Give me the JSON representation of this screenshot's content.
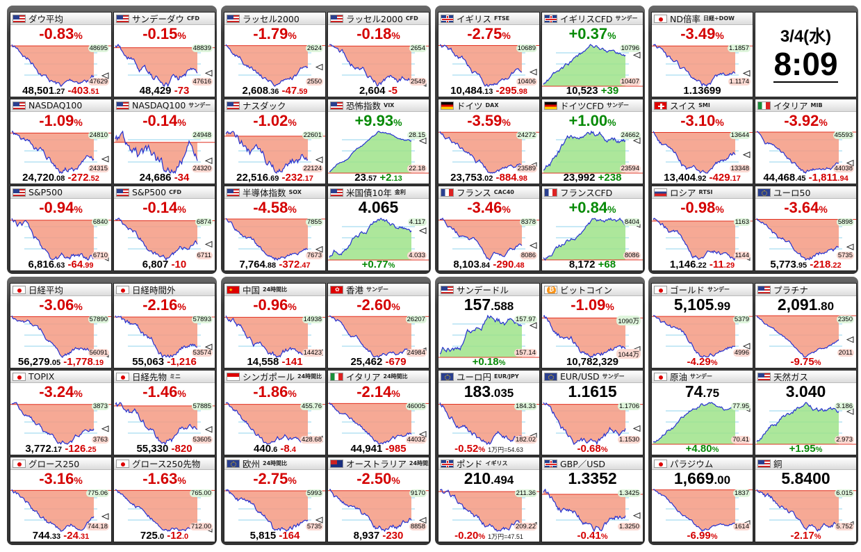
{
  "clock": {
    "date": "3/4(水)",
    "time": "8:09"
  },
  "groups": [
    {
      "cards": [
        {
          "flag": "us",
          "name": "ダウ平均",
          "tag": "",
          "head": [
            "-0.83",
            "%"
          ],
          "hi": "48695",
          "lo": "47629",
          "bottom": {
            "price": [
              "48,501",
              ".27"
            ],
            "change": [
              "-403",
              ".51"
            ]
          }
        },
        {
          "flag": "us",
          "name": "サンデーダウ",
          "tag": "CFD",
          "head": [
            "-0.15",
            "%"
          ],
          "hi": "48839",
          "lo": "47616",
          "bottom": {
            "price": [
              "48,429",
              ""
            ],
            "change": [
              "-73",
              ""
            ]
          }
        },
        {
          "flag": "us",
          "name": "NASDAQ100",
          "tag": "",
          "head": [
            "-1.09",
            "%"
          ],
          "hi": "24810",
          "lo": "24315",
          "bottom": {
            "price": [
              "24,720",
              ".08"
            ],
            "change": [
              "-272",
              ".52"
            ]
          }
        },
        {
          "flag": "us",
          "name": "NASDAQ100",
          "tag": "サンデー",
          "head": [
            "-0.14",
            "%"
          ],
          "hi": "24948",
          "lo": "24320",
          "bottom": {
            "price": [
              "24,686",
              ""
            ],
            "change": [
              "-34",
              ""
            ]
          }
        },
        {
          "flag": "us",
          "name": "S&P500",
          "tag": "",
          "head": [
            "-0.94",
            "%"
          ],
          "hi": "6840",
          "lo": "6710",
          "bottom": {
            "price": [
              "6,816",
              ".63"
            ],
            "change": [
              "-64",
              ".99"
            ]
          }
        },
        {
          "flag": "us",
          "name": "S&P500",
          "tag": "CFD",
          "head": [
            "-0.14",
            "%"
          ],
          "hi": "6874",
          "lo": "6711",
          "bottom": {
            "price": [
              "6,807",
              ""
            ],
            "change": [
              "-10",
              ""
            ]
          }
        }
      ]
    },
    {
      "cards": [
        {
          "flag": "us",
          "name": "ラッセル2000",
          "tag": "",
          "head": [
            "-1.79",
            "%"
          ],
          "hi": "2624",
          "lo": "2550",
          "bottom": {
            "price": [
              "2,608",
              ".36"
            ],
            "change": [
              "-47",
              ".59"
            ]
          }
        },
        {
          "flag": "us",
          "name": "ラッセル2000",
          "tag": "CFD",
          "head": [
            "-0.18",
            "%"
          ],
          "hi": "2654",
          "lo": "2549",
          "bottom": {
            "price": [
              "2,604",
              ""
            ],
            "change": [
              "-5",
              ""
            ]
          }
        },
        {
          "flag": "us",
          "name": "ナスダック",
          "tag": "",
          "head": [
            "-1.02",
            "%"
          ],
          "hi": "22601",
          "lo": "22124",
          "bottom": {
            "price": [
              "22,516",
              ".69"
            ],
            "change": [
              "-232",
              ".17"
            ]
          }
        },
        {
          "flag": "us",
          "name": "恐怖指数",
          "tag": "VIX",
          "head": [
            "+9.93",
            "%"
          ],
          "hi": "28.15",
          "lo": "22.18",
          "bottom": {
            "price": [
              "23",
              ".57"
            ],
            "change": [
              "+2",
              ".13"
            ]
          }
        },
        {
          "flag": "us",
          "name": "半導体指数",
          "tag": "SOX",
          "head": [
            "-4.58",
            "%"
          ],
          "hi": "7855",
          "lo": "7673",
          "bottom": {
            "price": [
              "7,764",
              ".88"
            ],
            "change": [
              "-372",
              ".47"
            ]
          }
        },
        {
          "flag": "us",
          "name": "米国債10年",
          "tag": "金利",
          "head": [
            "4.065",
            ""
          ],
          "hi": "4.117",
          "lo": "4.033",
          "bottom": {
            "pct": [
              "+0.77",
              "%"
            ]
          }
        }
      ]
    },
    {
      "cards": [
        {
          "flag": "uk",
          "name": "イギリス",
          "tag": "FTSE",
          "head": [
            "-2.75",
            "%"
          ],
          "hi": "10689",
          "lo": "10406",
          "bottom": {
            "price": [
              "10,484",
              ".13"
            ],
            "change": [
              "-295",
              ".98"
            ]
          }
        },
        {
          "flag": "uk",
          "name": "イギリスCFD",
          "tag": "サンデー",
          "head": [
            "+0.37",
            "%"
          ],
          "hi": "10796",
          "lo": "10407",
          "bottom": {
            "price": [
              "10,523",
              ""
            ],
            "change": [
              "+39",
              ""
            ]
          }
        },
        {
          "flag": "de",
          "name": "ドイツ",
          "tag": "DAX",
          "head": [
            "-3.59",
            "%"
          ],
          "hi": "24272",
          "lo": "23589",
          "bottom": {
            "price": [
              "23,753",
              ".02"
            ],
            "change": [
              "-884",
              ".98"
            ]
          }
        },
        {
          "flag": "de",
          "name": "ドイツCFD",
          "tag": "サンデー",
          "head": [
            "+1.00",
            "%"
          ],
          "hi": "24662",
          "lo": "23594",
          "bottom": {
            "price": [
              "23,992",
              ""
            ],
            "change": [
              "+238",
              ""
            ]
          }
        },
        {
          "flag": "fr",
          "name": "フランス",
          "tag": "CAC40",
          "head": [
            "-3.46",
            "%"
          ],
          "hi": "8378",
          "lo": "8086",
          "bottom": {
            "price": [
              "8,103",
              ".84"
            ],
            "change": [
              "-290",
              ".48"
            ]
          }
        },
        {
          "flag": "fr",
          "name": "フランスCFD",
          "tag": "",
          "head": [
            "+0.84",
            "%"
          ],
          "hi": "8404",
          "lo": "8086",
          "bottom": {
            "price": [
              "8,172",
              ""
            ],
            "change": [
              "+68",
              ""
            ]
          }
        }
      ]
    },
    {
      "cards": [
        {
          "flag": "jp",
          "name": "ND倍率",
          "tag": "日経÷DOW",
          "head": [
            "-3.49",
            "%"
          ],
          "hi": "1.1857",
          "lo": "1.1174",
          "bottom": {
            "price": [
              "1.13699",
              ""
            ],
            "change": [
              "",
              ""
            ]
          }
        },
        null,
        {
          "flag": "ch",
          "name": "スイス",
          "tag": "SMI",
          "head": [
            "-3.10",
            "%"
          ],
          "hi": "13644",
          "lo": "13348",
          "bottom": {
            "price": [
              "13,404",
              ".92"
            ],
            "change": [
              "-429",
              ".17"
            ]
          }
        },
        {
          "flag": "it",
          "name": "イタリア",
          "tag": "MIB",
          "head": [
            "-3.92",
            "%"
          ],
          "hi": "45593",
          "lo": "44038",
          "bottom": {
            "price": [
              "44,468",
              ".45"
            ],
            "change": [
              "-1,811",
              ".94"
            ]
          }
        },
        {
          "flag": "ru",
          "name": "ロシア",
          "tag": "RTSI",
          "head": [
            "-0.98",
            "%"
          ],
          "hi": "1163",
          "lo": "1144",
          "bottom": {
            "price": [
              "1,146",
              ".22"
            ],
            "change": [
              "-11",
              ".29"
            ]
          }
        },
        {
          "flag": "eu",
          "name": "ユーロ50",
          "tag": "",
          "head": [
            "-3.64",
            "%"
          ],
          "hi": "5898",
          "lo": "5735",
          "bottom": {
            "price": [
              "5,773",
              ".95"
            ],
            "change": [
              "-218",
              ".22"
            ]
          }
        }
      ]
    },
    {
      "cards": [
        {
          "flag": "jp",
          "name": "日経平均",
          "tag": "",
          "head": [
            "-3.06",
            "%"
          ],
          "hi": "57890",
          "lo": "56091",
          "bottom": {
            "price": [
              "56,279",
              ".05"
            ],
            "change": [
              "-1,778",
              ".19"
            ]
          }
        },
        {
          "flag": "jp",
          "name": "日経時間外",
          "tag": "",
          "head": [
            "-2.16",
            "%"
          ],
          "hi": "57893",
          "lo": "53574",
          "bottom": {
            "price": [
              "55,063",
              ""
            ],
            "change": [
              "-1,216",
              ""
            ]
          }
        },
        {
          "flag": "jp",
          "name": "TOPIX",
          "tag": "",
          "head": [
            "-3.24",
            "%"
          ],
          "hi": "3873",
          "lo": "3763",
          "bottom": {
            "price": [
              "3,772",
              ".17"
            ],
            "change": [
              "-126",
              ".25"
            ]
          }
        },
        {
          "flag": "jp",
          "name": "日経先物",
          "tag": "ミニ",
          "head": [
            "-1.46",
            "%"
          ],
          "hi": "57885",
          "lo": "53605",
          "bottom": {
            "price": [
              "55,330",
              ""
            ],
            "change": [
              "-820",
              ""
            ]
          }
        },
        {
          "flag": "jp",
          "name": "グロース250",
          "tag": "",
          "head": [
            "-3.16",
            "%"
          ],
          "hi": "775.06",
          "lo": "744.18",
          "bottom": {
            "price": [
              "744",
              ".33"
            ],
            "change": [
              "-24",
              ".31"
            ]
          }
        },
        {
          "flag": "jp",
          "name": "グロース250先物",
          "tag": "",
          "head": [
            "-1.63",
            "%"
          ],
          "hi": "765.00",
          "lo": "712.00",
          "bottom": {
            "price": [
              "725",
              ".0"
            ],
            "change": [
              "-12",
              ".0"
            ]
          }
        }
      ]
    },
    {
      "cards": [
        {
          "flag": "cn",
          "name": "中国",
          "tag": "24時間比",
          "head": [
            "-0.96",
            "%"
          ],
          "hi": "14938",
          "lo": "14423",
          "bottom": {
            "price": [
              "14,558",
              ""
            ],
            "change": [
              "-141",
              ""
            ]
          }
        },
        {
          "flag": "hk",
          "name": "香港",
          "tag": "サンデー",
          "head": [
            "-2.60",
            "%"
          ],
          "hi": "26207",
          "lo": "24984",
          "bottom": {
            "price": [
              "25,462",
              ""
            ],
            "change": [
              "-679",
              ""
            ]
          }
        },
        {
          "flag": "sg",
          "name": "シンガポール",
          "tag": "24時間比",
          "head": [
            "-1.86",
            "%"
          ],
          "hi": "455.76",
          "lo": "428.68",
          "bottom": {
            "price": [
              "440",
              ".6"
            ],
            "change": [
              "-8",
              ".4"
            ]
          }
        },
        {
          "flag": "it",
          "name": "イタリア",
          "tag": "24時間比",
          "head": [
            "-2.14",
            "%"
          ],
          "hi": "46005",
          "lo": "44032",
          "bottom": {
            "price": [
              "44,941",
              ""
            ],
            "change": [
              "-985",
              ""
            ]
          }
        },
        {
          "flag": "eu",
          "name": "欧州",
          "tag": "24時間比",
          "head": [
            "-2.75",
            "%"
          ],
          "hi": "5993",
          "lo": "5735",
          "bottom": {
            "price": [
              "5,815",
              ""
            ],
            "change": [
              "-164",
              ""
            ]
          }
        },
        {
          "flag": "au",
          "name": "オーストラリア",
          "tag": "24時間比",
          "head": [
            "-2.50",
            "%"
          ],
          "hi": "9170",
          "lo": "8858",
          "bottom": {
            "price": [
              "8,937",
              ""
            ],
            "change": [
              "-230",
              ""
            ]
          }
        }
      ]
    },
    {
      "cards": [
        {
          "flag": "us",
          "name": "サンデードル",
          "tag": "",
          "head": [
            "157",
            ".588"
          ],
          "hi": "157.97",
          "lo": "157.14",
          "bottom": {
            "pct": [
              "+0.18",
              "%"
            ]
          }
        },
        {
          "flag": "btc",
          "name": "ビットコイン",
          "tag": "",
          "head": [
            "-1.09",
            "%"
          ],
          "hi": "1090万",
          "lo": "1044万",
          "bottom": {
            "price": [
              "10,782,329",
              ""
            ],
            "change": [
              "",
              ""
            ]
          }
        },
        {
          "flag": "eu",
          "name": "ユーロ円",
          "tag": "EUR/JPY",
          "head": [
            "183",
            ".035"
          ],
          "hi": "184.33",
          "lo": "182.02",
          "bottom": {
            "pct": [
              "-0.52",
              "%"
            ],
            "note": "1万円=54.63"
          }
        },
        {
          "flag": "eu",
          "name": "EUR/USD",
          "tag": "サンデー",
          "head": [
            "1.1615",
            ""
          ],
          "hi": "1.1706",
          "lo": "1.1530",
          "bottom": {
            "pct": [
              "-0.68",
              "%"
            ]
          }
        },
        {
          "flag": "uk",
          "name": "ポンド",
          "tag": "イギリス",
          "head": [
            "210",
            ".494"
          ],
          "hi": "211.36",
          "lo": "209.22",
          "bottom": {
            "pct": [
              "-0.20",
              "%"
            ],
            "note": "1万円=47.51"
          }
        },
        {
          "flag": "uk",
          "name": "GBP／USD",
          "tag": "",
          "head": [
            "1.3352",
            ""
          ],
          "hi": "1.3425",
          "lo": "1.3250",
          "bottom": {
            "pct": [
              "-0.41",
              "%"
            ]
          }
        }
      ]
    },
    {
      "cards": [
        {
          "flag": "jp",
          "name": "ゴールド",
          "tag": "サンデー",
          "head": [
            "5,105",
            ".99"
          ],
          "hi": "5379",
          "lo": "4996",
          "bottom": {
            "pct": [
              "-4.29",
              "%"
            ]
          }
        },
        {
          "flag": "us",
          "name": "プラチナ",
          "tag": "",
          "head": [
            "2,091",
            ".80"
          ],
          "hi": "2350",
          "lo": "2011",
          "bottom": {
            "pct": [
              "-9.75",
              "%"
            ]
          }
        },
        {
          "flag": "jp",
          "name": "原油",
          "tag": "サンデー",
          "head": [
            "74",
            ".75"
          ],
          "hi": "77.95",
          "lo": "70.41",
          "bottom": {
            "pct": [
              "+4.80",
              "%"
            ]
          }
        },
        {
          "flag": "us",
          "name": "天然ガス",
          "tag": "",
          "head": [
            "3.040",
            ""
          ],
          "hi": "3.186",
          "lo": "2.973",
          "bottom": {
            "pct": [
              "+1.95",
              "%"
            ]
          }
        },
        {
          "flag": "jp",
          "name": "パラジウム",
          "tag": "",
          "head": [
            "1,669",
            ".00"
          ],
          "hi": "1837",
          "lo": "1614",
          "bottom": {
            "pct": [
              "-6.99",
              "%"
            ]
          }
        },
        {
          "flag": "us",
          "name": "銅",
          "tag": "",
          "head": [
            "5.8400",
            ""
          ],
          "hi": "6.015",
          "lo": "5.752",
          "bottom": {
            "pct": [
              "-2.17",
              "%"
            ]
          }
        }
      ]
    }
  ]
}
